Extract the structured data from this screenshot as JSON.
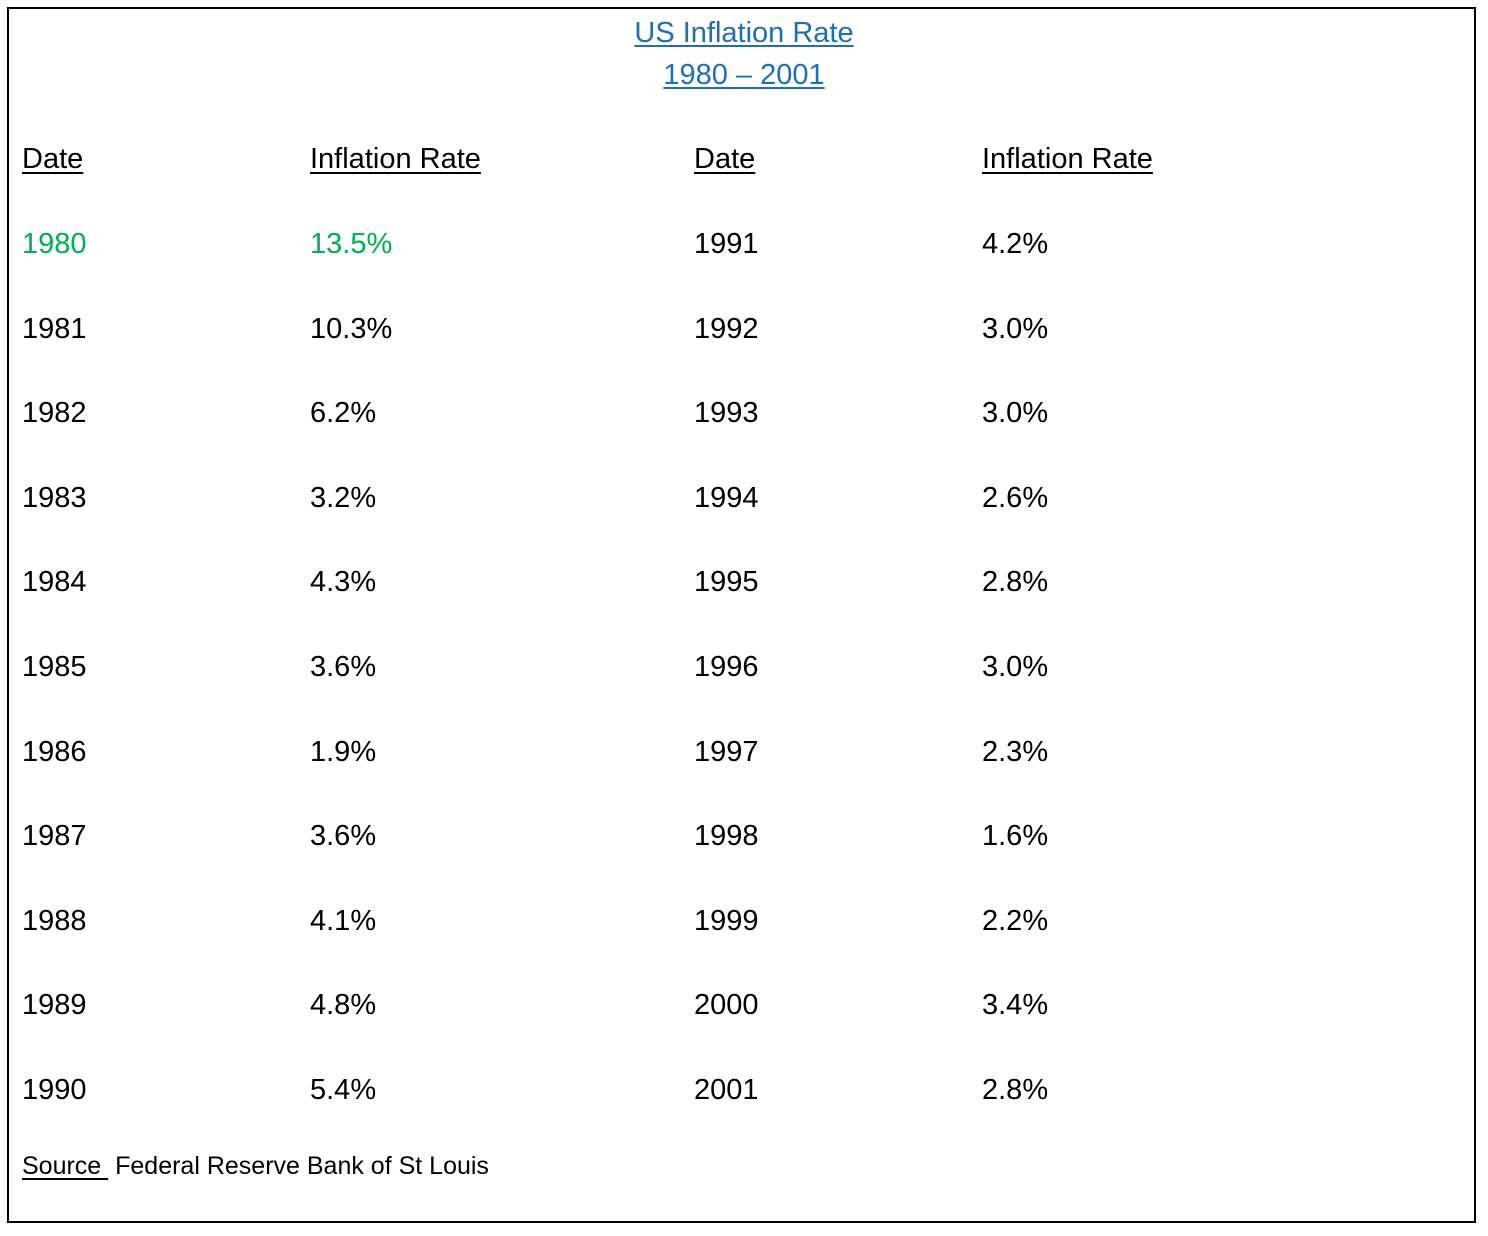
{
  "title": {
    "line1": "US Inflation Rate",
    "line2": "1980 – 2001"
  },
  "colors": {
    "title": "#1f6fb8",
    "highlight": "#00b050",
    "text": "#000000"
  },
  "headers": [
    "Date",
    "Inflation Rate",
    "Date",
    "Inflation Rate"
  ],
  "left_rows": [
    {
      "date": "1980",
      "rate": "13.5%",
      "highlight": true
    },
    {
      "date": "1981",
      "rate": "10.3%"
    },
    {
      "date": "1982",
      "rate": "6.2%"
    },
    {
      "date": "1983",
      "rate": "3.2%"
    },
    {
      "date": "1984",
      "rate": "4.3%"
    },
    {
      "date": "1985",
      "rate": "3.6%"
    },
    {
      "date": "1986",
      "rate": "1.9%"
    },
    {
      "date": "1987",
      "rate": "3.6%"
    },
    {
      "date": "1988",
      "rate": "4.1%"
    },
    {
      "date": "1989",
      "rate": "4.8%"
    },
    {
      "date": "1990",
      "rate": "5.4%"
    }
  ],
  "right_rows": [
    {
      "date": "1991",
      "rate": "4.2%"
    },
    {
      "date": "1992",
      "rate": "3.0%"
    },
    {
      "date": "1993",
      "rate": "3.0%"
    },
    {
      "date": "1994",
      "rate": "2.6%"
    },
    {
      "date": "1995",
      "rate": "2.8%"
    },
    {
      "date": "1996",
      "rate": "3.0%"
    },
    {
      "date": "1997",
      "rate": "2.3%"
    },
    {
      "date": "1998",
      "rate": "1.6%"
    },
    {
      "date": "1999",
      "rate": "2.2%"
    },
    {
      "date": "2000",
      "rate": "3.4%"
    },
    {
      "date": "2001",
      "rate": "2.8%"
    }
  ],
  "source": {
    "label": "Source ",
    "text": "Federal Reserve Bank of St Louis"
  }
}
